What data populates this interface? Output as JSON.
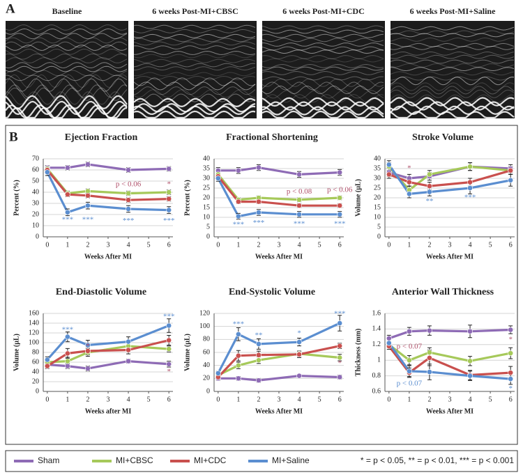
{
  "panel_a": {
    "label": "A",
    "image_titles": [
      "Baseline",
      "6 weeks Post-MI+CBSC",
      "6 weeks Post-MI+CDC",
      "6 weeks Post-MI+Saline"
    ]
  },
  "panel_b": {
    "label": "B"
  },
  "chart_data": [
    {
      "type": "line",
      "title": "Ejection Fraction",
      "xlabel": "Weeks After MI",
      "ylabel": "Percent (%)",
      "x": [
        0,
        1,
        2,
        4,
        6
      ],
      "xlim": [
        -0.2,
        6.2
      ],
      "xticks": [
        0,
        1,
        2,
        3,
        4,
        5,
        6
      ],
      "ylim": [
        0,
        70
      ],
      "yticks": [
        0,
        10,
        20,
        30,
        40,
        50,
        60,
        70
      ],
      "grid": true,
      "series": [
        {
          "name": "Sham",
          "color": "#8e6bb5",
          "values": [
            62,
            62,
            65,
            60,
            61
          ],
          "errors": [
            2,
            2,
            2,
            2,
            2
          ]
        },
        {
          "name": "MI+CBSC",
          "color": "#a6c95a",
          "values": [
            61,
            39,
            41,
            39,
            40
          ],
          "errors": [
            2,
            2,
            2,
            2,
            2
          ]
        },
        {
          "name": "MI+CDC",
          "color": "#c9504e",
          "values": [
            60,
            38,
            37,
            33,
            34
          ],
          "errors": [
            2,
            2,
            2,
            2,
            2
          ]
        },
        {
          "name": "MI+Saline",
          "color": "#5b8ed0",
          "values": [
            58,
            22,
            28,
            25,
            24
          ],
          "errors": [
            3,
            3,
            3,
            3,
            3
          ]
        }
      ],
      "annotations": [
        {
          "text": "***",
          "x": 1,
          "y": 15,
          "color": "#5b8ed0"
        },
        {
          "text": "***",
          "x": 2,
          "y": 15,
          "color": "#5b8ed0"
        },
        {
          "text": "***",
          "x": 4,
          "y": 14,
          "color": "#5b8ed0"
        },
        {
          "text": "***",
          "x": 6,
          "y": 14,
          "color": "#5b8ed0"
        },
        {
          "text": "p < 0.06",
          "x": 4,
          "y": 47,
          "color": "#b0506a"
        },
        {
          "text": "*",
          "x": 6,
          "y": 47,
          "color": "#b0506a"
        }
      ]
    },
    {
      "type": "line",
      "title": "Fractional Shortening",
      "xlabel": "Weeks After MI",
      "ylabel": "Percent (%)",
      "x": [
        0,
        1,
        2,
        4,
        6
      ],
      "xlim": [
        -0.2,
        6.2
      ],
      "xticks": [
        0,
        1,
        2,
        3,
        4,
        5,
        6
      ],
      "ylim": [
        0,
        40
      ],
      "yticks": [
        0,
        5,
        10,
        15,
        20,
        25,
        30,
        35,
        40
      ],
      "grid": true,
      "series": [
        {
          "name": "Sham",
          "color": "#8e6bb5",
          "values": [
            34,
            34,
            35.5,
            32,
            33
          ],
          "errors": [
            1.5,
            1.5,
            1.5,
            1.5,
            1.5
          ]
        },
        {
          "name": "MI+CBSC",
          "color": "#a6c95a",
          "values": [
            32,
            19,
            20,
            19,
            20
          ],
          "errors": [
            1,
            1,
            1,
            1,
            1
          ]
        },
        {
          "name": "MI+CDC",
          "color": "#c9504e",
          "values": [
            31,
            18,
            18,
            16,
            16
          ],
          "errors": [
            1,
            1,
            1,
            1,
            1
          ]
        },
        {
          "name": "MI+Saline",
          "color": "#5b8ed0",
          "values": [
            30,
            10.5,
            12.5,
            11.5,
            11.5
          ],
          "errors": [
            1.5,
            1.5,
            1.5,
            1.5,
            1.5
          ]
        }
      ],
      "annotations": [
        {
          "text": "***",
          "x": 1,
          "y": 6,
          "color": "#5b8ed0"
        },
        {
          "text": "***",
          "x": 2,
          "y": 7,
          "color": "#5b8ed0"
        },
        {
          "text": "***",
          "x": 4,
          "y": 6.5,
          "color": "#5b8ed0"
        },
        {
          "text": "***",
          "x": 6,
          "y": 6.5,
          "color": "#5b8ed0"
        },
        {
          "text": "p < 0.08",
          "x": 4,
          "y": 23,
          "color": "#b0506a"
        },
        {
          "text": "p < 0.06",
          "x": 6,
          "y": 24,
          "color": "#b0506a"
        }
      ]
    },
    {
      "type": "line",
      "title": "Stroke Volume",
      "xlabel": "Weeks After MI",
      "ylabel": "Volume (µL)",
      "x": [
        0,
        1,
        2,
        4,
        6
      ],
      "xlim": [
        -0.2,
        6.2
      ],
      "xticks": [
        0,
        1,
        2,
        3,
        4,
        5,
        6
      ],
      "ylim": [
        0,
        40
      ],
      "yticks": [
        0,
        5,
        10,
        15,
        20,
        25,
        30,
        35,
        40
      ],
      "grid": true,
      "series": [
        {
          "name": "Sham",
          "color": "#8e6bb5",
          "values": [
            33,
            30,
            31,
            36,
            35
          ],
          "errors": [
            2,
            2,
            2,
            2,
            2
          ]
        },
        {
          "name": "MI+CBSC",
          "color": "#a6c95a",
          "values": [
            36,
            24,
            32,
            36,
            34
          ],
          "errors": [
            2,
            2,
            2,
            2,
            2
          ]
        },
        {
          "name": "MI+CDC",
          "color": "#c9504e",
          "values": [
            32,
            28,
            26,
            28,
            34
          ],
          "errors": [
            2,
            2,
            2,
            2,
            2
          ]
        },
        {
          "name": "MI+Saline",
          "color": "#5b8ed0",
          "values": [
            37,
            22,
            23,
            25,
            29
          ],
          "errors": [
            2,
            2,
            2,
            3,
            3
          ]
        }
      ],
      "annotations": [
        {
          "text": "*",
          "x": 1,
          "y": 35,
          "color": "#b0506a"
        },
        {
          "text": "**",
          "x": 2,
          "y": 18,
          "color": "#5b8ed0"
        },
        {
          "text": "***",
          "x": 4,
          "y": 20,
          "color": "#5b8ed0"
        }
      ]
    },
    {
      "type": "line",
      "title": "End-Diastolic Volume",
      "xlabel": "Weeks after MI",
      "ylabel": "Volume (µL)",
      "x": [
        0,
        1,
        2,
        4,
        6
      ],
      "xlim": [
        -0.2,
        6.2
      ],
      "xticks": [
        0,
        1,
        2,
        3,
        4,
        5,
        6
      ],
      "ylim": [
        0,
        160
      ],
      "yticks": [
        0,
        20,
        40,
        60,
        80,
        100,
        120,
        140,
        160
      ],
      "grid": true,
      "series": [
        {
          "name": "Sham",
          "color": "#8e6bb5",
          "values": [
            55,
            52,
            47,
            62,
            56
          ],
          "errors": [
            5,
            5,
            5,
            4,
            6
          ]
        },
        {
          "name": "MI+CBSC",
          "color": "#a6c95a",
          "values": [
            60,
            62,
            80,
            93,
            87
          ],
          "errors": [
            6,
            8,
            8,
            8,
            6
          ]
        },
        {
          "name": "MI+CDC",
          "color": "#c9504e",
          "values": [
            52,
            78,
            83,
            85,
            105
          ],
          "errors": [
            5,
            10,
            8,
            8,
            10
          ]
        },
        {
          "name": "MI+Saline",
          "color": "#5b8ed0",
          "values": [
            65,
            112,
            95,
            102,
            135
          ],
          "errors": [
            6,
            10,
            10,
            10,
            14
          ]
        }
      ],
      "annotations": [
        {
          "text": "***",
          "x": 1,
          "y": 126,
          "color": "#5b8ed0"
        },
        {
          "text": "*",
          "x": 2,
          "y": 92,
          "color": "#b0506a"
        },
        {
          "text": "***",
          "x": 6,
          "y": 153,
          "color": "#5b8ed0"
        },
        {
          "text": "*",
          "x": 6,
          "y": 40,
          "color": "#b0506a"
        }
      ]
    },
    {
      "type": "line",
      "title": "End-Systolic Volume",
      "xlabel": "Weeks After MI",
      "ylabel": "Volume (µL)",
      "x": [
        0,
        1,
        2,
        4,
        6
      ],
      "xlim": [
        -0.2,
        6.2
      ],
      "xticks": [
        0,
        1,
        2,
        3,
        4,
        5,
        6
      ],
      "ylim": [
        0,
        120
      ],
      "yticks": [
        0,
        20,
        40,
        60,
        80,
        100,
        120
      ],
      "grid": true,
      "series": [
        {
          "name": "Sham",
          "color": "#8e6bb5",
          "values": [
            20,
            20,
            17,
            24,
            22
          ],
          "errors": [
            3,
            3,
            3,
            2,
            3
          ]
        },
        {
          "name": "MI+CBSC",
          "color": "#a6c95a",
          "values": [
            25,
            40,
            48,
            58,
            52
          ],
          "errors": [
            3,
            5,
            5,
            4,
            5
          ]
        },
        {
          "name": "MI+CDC",
          "color": "#c9504e",
          "values": [
            22,
            55,
            56,
            57,
            70
          ],
          "errors": [
            3,
            8,
            6,
            5,
            4
          ]
        },
        {
          "name": "MI+Saline",
          "color": "#5b8ed0",
          "values": [
            28,
            88,
            73,
            76,
            105
          ],
          "errors": [
            3,
            10,
            8,
            6,
            12
          ]
        }
      ],
      "annotations": [
        {
          "text": "***",
          "x": 1,
          "y": 103,
          "color": "#5b8ed0"
        },
        {
          "text": "**",
          "x": 2,
          "y": 86,
          "color": "#5b8ed0"
        },
        {
          "text": "*",
          "x": 4,
          "y": 89,
          "color": "#5b8ed0"
        },
        {
          "text": "***",
          "x": 6,
          "y": 119,
          "color": "#5b8ed0"
        },
        {
          "text": "*",
          "x": 6,
          "y": 43,
          "color": "#b0506a"
        }
      ]
    },
    {
      "type": "line",
      "title": "Anterior Wall Thickness",
      "xlabel": "Weeks After MI",
      "ylabel": "Thickness (mm)",
      "x": [
        0,
        1,
        2,
        4,
        6
      ],
      "xlim": [
        -0.2,
        6.2
      ],
      "xticks": [
        0,
        1,
        2,
        3,
        4,
        5,
        6
      ],
      "ylim": [
        0.6,
        1.6
      ],
      "yticks": [
        0.6,
        0.8,
        1,
        1.2,
        1.4,
        1.6
      ],
      "grid": true,
      "series": [
        {
          "name": "Sham",
          "color": "#8e6bb5",
          "values": [
            1.28,
            1.37,
            1.38,
            1.37,
            1.39
          ],
          "errors": [
            0.04,
            0.05,
            0.06,
            0.08,
            0.05
          ]
        },
        {
          "name": "MI+CBSC",
          "color": "#a6c95a",
          "values": [
            1.2,
            1.0,
            1.1,
            0.99,
            1.09
          ],
          "errors": [
            0.04,
            0.06,
            0.06,
            0.06,
            0.07
          ]
        },
        {
          "name": "MI+CDC",
          "color": "#c9504e",
          "values": [
            1.18,
            0.84,
            1.03,
            0.81,
            0.84
          ],
          "errors": [
            0.04,
            0.06,
            0.1,
            0.06,
            0.08
          ]
        },
        {
          "name": "MI+Saline",
          "color": "#5b8ed0",
          "values": [
            1.22,
            0.86,
            0.85,
            0.8,
            0.76
          ],
          "errors": [
            0.05,
            0.07,
            0.1,
            0.06,
            0.07
          ]
        }
      ],
      "annotations": [
        {
          "text": "p < 0.07",
          "x": 1,
          "y": 1.17,
          "color": "#b0506a"
        },
        {
          "text": "p < 0.07",
          "x": 1,
          "y": 0.7,
          "color": "#5b8ed0"
        },
        {
          "text": "*",
          "x": 6,
          "y": 1.26,
          "color": "#b0506a"
        },
        {
          "text": "*",
          "x": 6,
          "y": 0.63,
          "color": "#5b8ed0"
        }
      ]
    }
  ],
  "significance_note": "* = p < 0.05, ** = p < 0.01, *** = p < 0.001"
}
